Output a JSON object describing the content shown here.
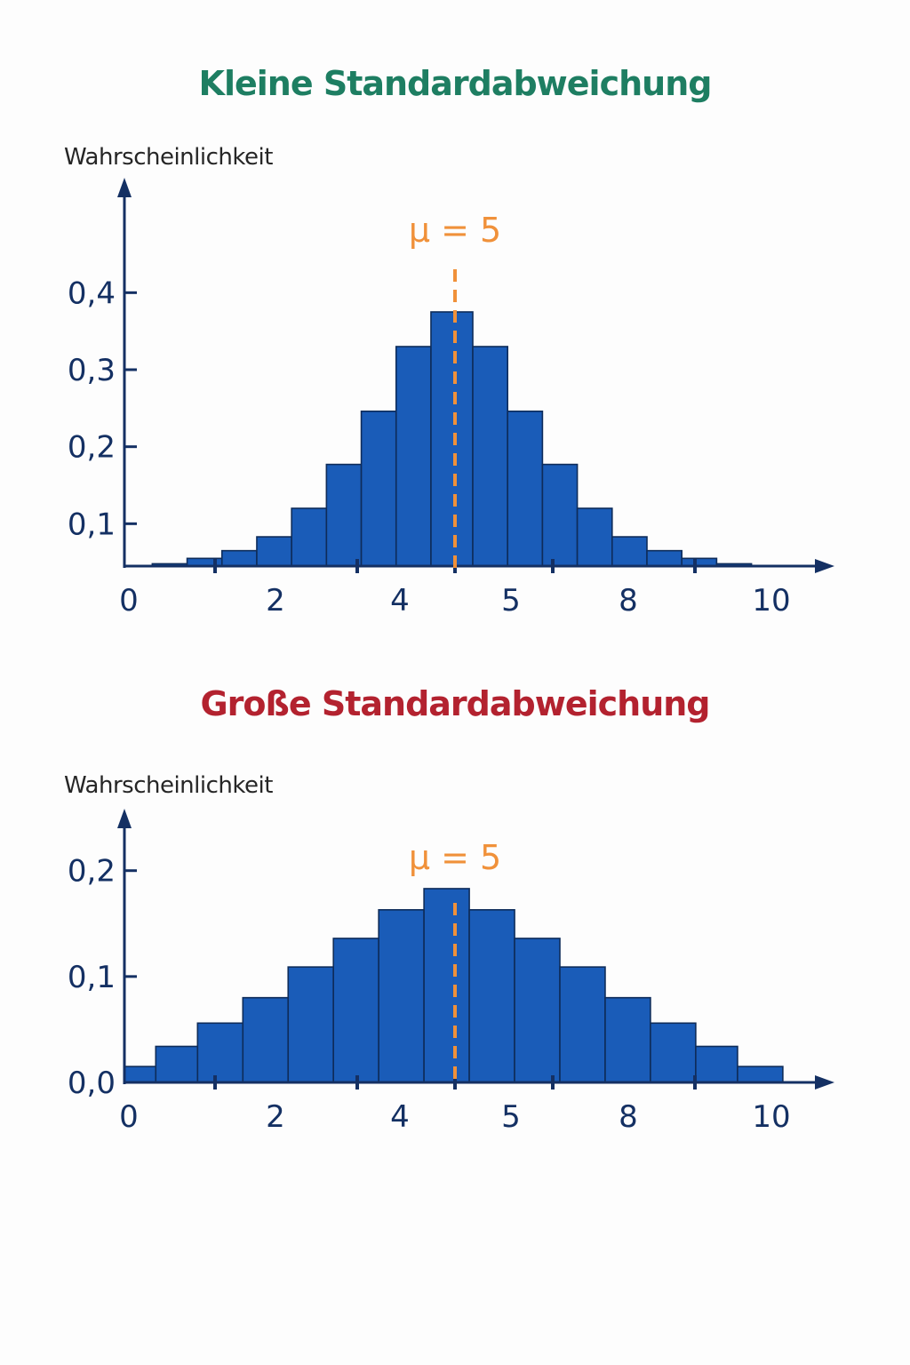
{
  "colors": {
    "bar_fill": "#1a5cb8",
    "bar_stroke": "#0e2c5a",
    "axis": "#143063",
    "mean_line": "#f0913a",
    "title_top": "#1e7e62",
    "title_bottom": "#b3222f"
  },
  "chart_data": [
    {
      "type": "bar",
      "title": "Kleine Standardabweichung",
      "ylabel": "Wahrscheinlichkeit",
      "xlabel": "",
      "mean_label": "μ = 5",
      "mean": 5,
      "x_tick_labels": [
        "0",
        "2",
        "4",
        "5",
        "8",
        "10"
      ],
      "y_tick_labels": [
        "0,1",
        "0,2",
        "0,3",
        "0,4"
      ],
      "y_ticks": [
        0.1,
        0.2,
        0.3,
        0.4
      ],
      "ylim": [
        0.045,
        0.48
      ],
      "grid": false,
      "bins": [
        {
          "x0": 0.4,
          "x1": 0.9,
          "value": 0.048
        },
        {
          "x0": 0.9,
          "x1": 1.4,
          "value": 0.055
        },
        {
          "x0": 1.4,
          "x1": 1.9,
          "value": 0.065
        },
        {
          "x0": 1.9,
          "x1": 2.4,
          "value": 0.083
        },
        {
          "x0": 2.4,
          "x1": 2.9,
          "value": 0.12
        },
        {
          "x0": 2.9,
          "x1": 3.4,
          "value": 0.177
        },
        {
          "x0": 3.4,
          "x1": 3.9,
          "value": 0.246
        },
        {
          "x0": 3.9,
          "x1": 4.4,
          "value": 0.33
        },
        {
          "x0": 4.4,
          "x1": 5.0,
          "value": 0.375
        },
        {
          "x0": 5.0,
          "x1": 5.5,
          "value": 0.33
        },
        {
          "x0": 5.5,
          "x1": 6.0,
          "value": 0.246
        },
        {
          "x0": 6.0,
          "x1": 6.5,
          "value": 0.177
        },
        {
          "x0": 6.5,
          "x1": 7.0,
          "value": 0.12
        },
        {
          "x0": 7.0,
          "x1": 7.5,
          "value": 0.083
        },
        {
          "x0": 7.5,
          "x1": 8.0,
          "value": 0.065
        },
        {
          "x0": 8.0,
          "x1": 8.5,
          "value": 0.055
        },
        {
          "x0": 8.5,
          "x1": 9.0,
          "value": 0.048
        }
      ]
    },
    {
      "type": "bar",
      "title": "Große Standardabweichung",
      "ylabel": "Wahrscheinlichkeit",
      "xlabel": "",
      "mean_label": "μ = 5",
      "mean": 5,
      "x_tick_labels": [
        "0",
        "2",
        "4",
        "5",
        "8",
        "10"
      ],
      "y_tick_labels": [
        "0,0",
        "0,1",
        "0,2"
      ],
      "y_ticks": [
        0.0,
        0.1,
        0.2
      ],
      "ylim": [
        0.0,
        0.235
      ],
      "grid": false,
      "bins": [
        {
          "x0": 0.0,
          "x1": 0.45,
          "value": 0.015
        },
        {
          "x0": 0.45,
          "x1": 1.05,
          "value": 0.034
        },
        {
          "x0": 1.05,
          "x1": 1.7,
          "value": 0.056
        },
        {
          "x0": 1.7,
          "x1": 2.35,
          "value": 0.08
        },
        {
          "x0": 2.35,
          "x1": 3.0,
          "value": 0.109
        },
        {
          "x0": 3.0,
          "x1": 3.65,
          "value": 0.136
        },
        {
          "x0": 3.65,
          "x1": 4.3,
          "value": 0.163
        },
        {
          "x0": 4.3,
          "x1": 4.95,
          "value": 0.183
        },
        {
          "x0": 4.95,
          "x1": 5.6,
          "value": 0.163
        },
        {
          "x0": 5.6,
          "x1": 6.25,
          "value": 0.136
        },
        {
          "x0": 6.25,
          "x1": 6.9,
          "value": 0.109
        },
        {
          "x0": 6.9,
          "x1": 7.55,
          "value": 0.08
        },
        {
          "x0": 7.55,
          "x1": 8.2,
          "value": 0.056
        },
        {
          "x0": 8.2,
          "x1": 8.8,
          "value": 0.034
        },
        {
          "x0": 8.8,
          "x1": 9.45,
          "value": 0.015
        }
      ]
    }
  ]
}
